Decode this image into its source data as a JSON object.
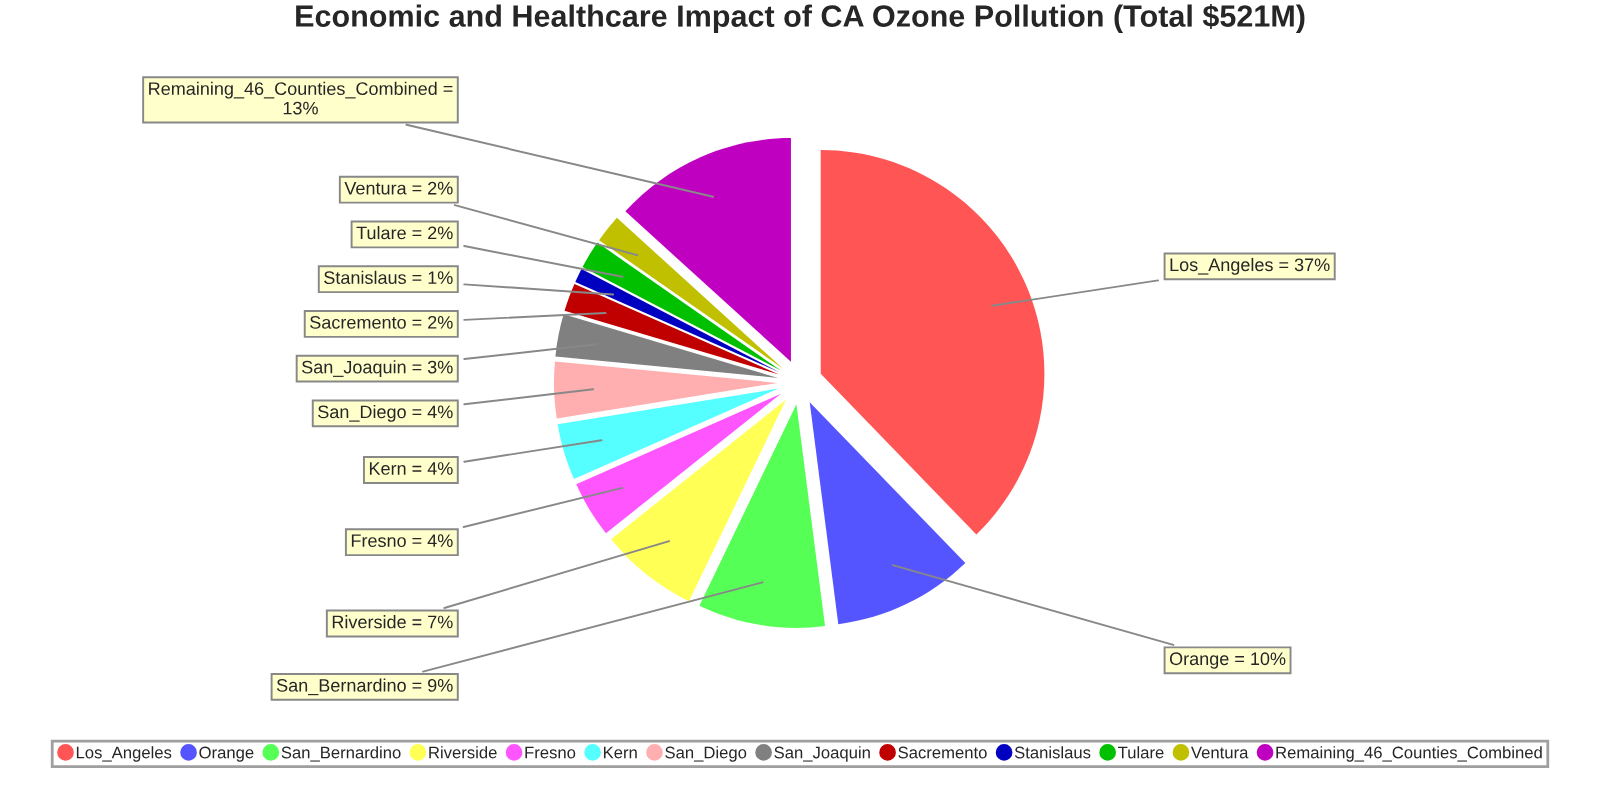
{
  "chart_data": {
    "type": "pie",
    "title": "Economic and Healthcare Impact of CA Ozone Pollution (Total $521M)",
    "categories": [
      "Los_Angeles",
      "Orange",
      "San_Bernardino",
      "Riverside",
      "Fresno",
      "Kern",
      "San_Diego",
      "San_Joaquin",
      "Sacremento",
      "Stanislaus",
      "Tulare",
      "Ventura",
      "Remaining_46_Counties_Combined"
    ],
    "values": [
      37,
      10,
      9,
      7,
      4,
      4,
      4,
      3,
      2,
      1,
      2,
      2,
      13
    ],
    "colors": [
      "#ff5555",
      "#5555ff",
      "#55ff55",
      "#ffff55",
      "#ff55ff",
      "#55ffff",
      "#ffafaf",
      "#808080",
      "#c00000",
      "#0000c0",
      "#00c000",
      "#c0c000",
      "#c000c0"
    ],
    "value_labels": [
      "Los_Angeles = 37%",
      "Orange = 10%",
      "San_Bernardino = 9%",
      "Riverside = 7%",
      "Fresno = 4%",
      "Kern = 4%",
      "San_Diego = 4%",
      "San_Joaquin = 3%",
      "Sacremento = 2%",
      "Stanislaus = 1%",
      "Tulare = 2%",
      "Ventura = 2%",
      "Remaining_46_Counties_Combined =\n13%"
    ],
    "legend": "bottom"
  }
}
